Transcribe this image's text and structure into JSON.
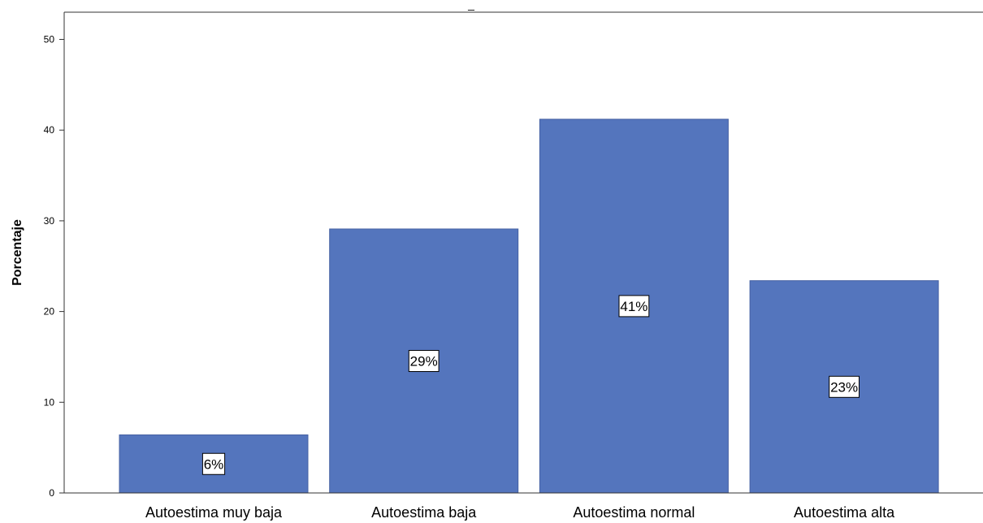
{
  "chart_data": {
    "type": "bar",
    "ylabel": "Porcentaje",
    "categories": [
      "Autoestima muy baja",
      "Autoestima baja",
      "Autoestima normal",
      "Autoestima alta"
    ],
    "values": [
      6.4,
      29.1,
      41.2,
      23.4
    ],
    "data_labels": [
      "6%",
      "29%",
      "41%",
      "23%"
    ],
    "yticks": [
      0,
      10,
      20,
      30,
      40,
      50
    ],
    "ylim": [
      0,
      53
    ],
    "bar_color": "#5475bd",
    "grid": false,
    "top_mark": "_"
  }
}
